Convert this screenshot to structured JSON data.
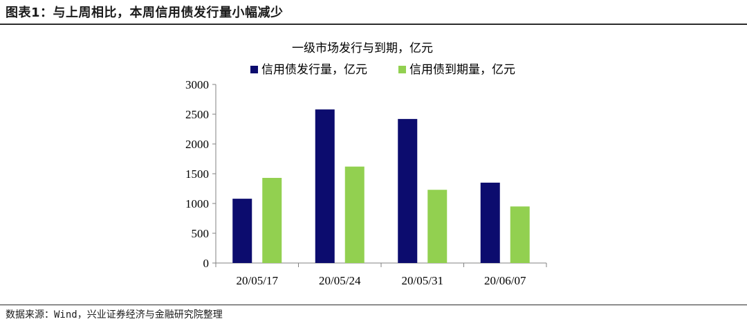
{
  "figure": {
    "title": "图表1：与上周相比，本周信用债发行量小幅减少",
    "source": "数据来源：Wind，兴业证券经济与金融研究院整理"
  },
  "chart_data": {
    "type": "bar",
    "title": "一级市场发行与到期，亿元",
    "categories": [
      "20/05/17",
      "20/05/24",
      "20/05/31",
      "20/06/07"
    ],
    "series": [
      {
        "name": "信用债发行量，亿元",
        "color": "#0c0c6e",
        "values": [
          1080,
          2580,
          2420,
          1350
        ]
      },
      {
        "name": "信用债到期量，亿元",
        "color": "#92d050",
        "values": [
          1430,
          1620,
          1230,
          950
        ]
      }
    ],
    "ylim": [
      0,
      3000
    ],
    "yticks": [
      0,
      500,
      1000,
      1500,
      2000,
      2500,
      3000
    ],
    "grid": false,
    "legend_position": "top"
  }
}
